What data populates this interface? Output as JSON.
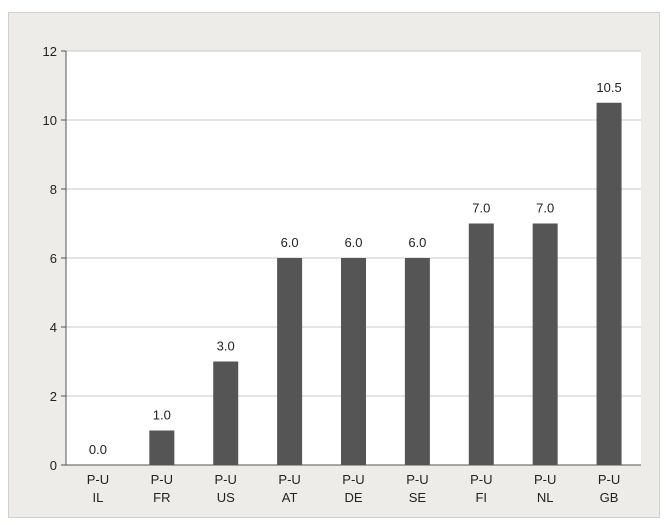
{
  "chart_data": {
    "type": "bar",
    "categories": [
      [
        "P-U",
        "IL"
      ],
      [
        "P-U",
        "FR"
      ],
      [
        "P-U",
        "US"
      ],
      [
        "P-U",
        "AT"
      ],
      [
        "P-U",
        "DE"
      ],
      [
        "P-U",
        "SE"
      ],
      [
        "P-U",
        "FI"
      ],
      [
        "P-U",
        "NL"
      ],
      [
        "P-U",
        "GB"
      ]
    ],
    "values": [
      0.0,
      1.0,
      3.0,
      6.0,
      6.0,
      6.0,
      7.0,
      7.0,
      10.5
    ],
    "value_labels": [
      "0.0",
      "1.0",
      "3.0",
      "6.0",
      "6.0",
      "6.0",
      "7.0",
      "7.0",
      "10.5"
    ],
    "yticks": [
      "0",
      "2",
      "4",
      "6",
      "8",
      "10",
      "12"
    ],
    "ylim": [
      0,
      12
    ],
    "grid": true,
    "title": "",
    "xlabel": "",
    "ylabel": "",
    "colors": {
      "bar": "#555555",
      "plot_bg": "#ffffff",
      "frame_bg": "#eeece9",
      "grid": "#c8c8c8",
      "axis": "#555555"
    }
  }
}
